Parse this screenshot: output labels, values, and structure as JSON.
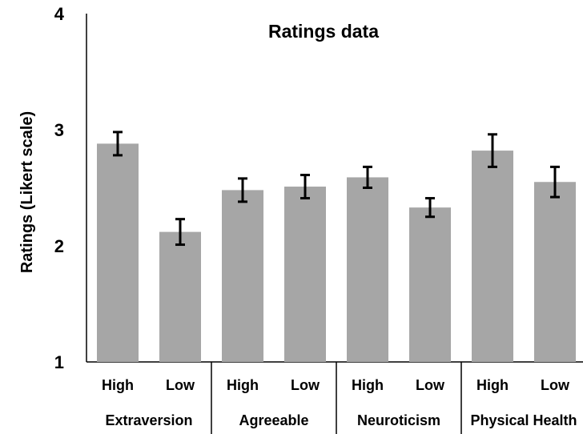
{
  "chart_data": {
    "type": "bar",
    "title": "Ratings data",
    "ylabel": "Ratings (Likert scale)",
    "xlabel": "",
    "ylim": [
      1,
      4
    ],
    "yticks": [
      1,
      2,
      3,
      4
    ],
    "grid": false,
    "legend": "none",
    "bar_color": "#a6a6a6",
    "error_color": "#000000",
    "groups": [
      {
        "name": "Extraversion",
        "categories": [
          "High",
          "Low"
        ],
        "values": [
          2.88,
          2.12
        ],
        "errors": [
          0.1,
          0.11
        ]
      },
      {
        "name": "Agreeable",
        "categories": [
          "High",
          "Low"
        ],
        "values": [
          2.48,
          2.51
        ],
        "errors": [
          0.1,
          0.1
        ]
      },
      {
        "name": "Neuroticism",
        "categories": [
          "High",
          "Low"
        ],
        "values": [
          2.59,
          2.33
        ],
        "errors": [
          0.09,
          0.08
        ]
      },
      {
        "name": "Physical Health",
        "categories": [
          "High",
          "Low"
        ],
        "values": [
          2.82,
          2.55
        ],
        "errors": [
          0.14,
          0.13
        ]
      }
    ]
  }
}
